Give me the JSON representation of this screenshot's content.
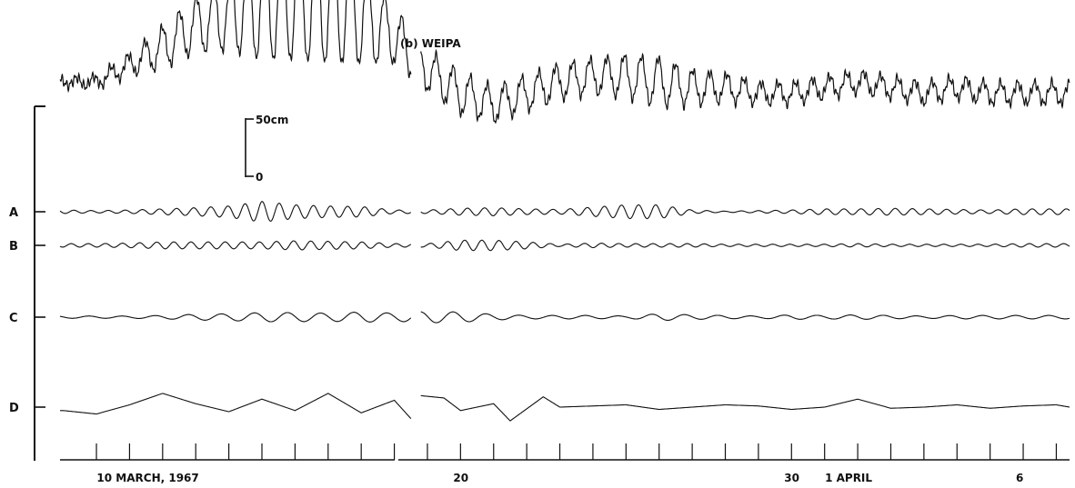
{
  "colors": {
    "ink": "#111111",
    "background": "#ffffff"
  },
  "figure": {
    "panel_title": "(b) WEIPA",
    "scale_bar": {
      "top_label": "50cm",
      "bottom_label": "0",
      "span_cm": 50
    }
  },
  "chart_data": {
    "type": "line",
    "title": "(b) WEIPA",
    "x_unit": "days (10 March 1967 = 10)",
    "x_range": [
      7.9,
      38.4
    ],
    "gap": [
      18.5,
      18.8
    ],
    "x_tick_labels": [
      {
        "day": 10,
        "text": "10 MARCH, 1967"
      },
      {
        "day": 20,
        "text": "20"
      },
      {
        "day": 30,
        "text": "30"
      },
      {
        "day": 32,
        "text": "1 APRIL"
      },
      {
        "day": 37,
        "text": "6"
      }
    ],
    "x_ticks_days": [
      9,
      10,
      11,
      12,
      13,
      14,
      15,
      16,
      17,
      18,
      19,
      20,
      21,
      22,
      23,
      24,
      25,
      26,
      27,
      28,
      29,
      30,
      31,
      32,
      33,
      34,
      35,
      36,
      37,
      38
    ],
    "series": [
      {
        "name": "",
        "kind": "observed",
        "amplitude_cm": [
          [
            8,
            5
          ],
          [
            9,
            8
          ],
          [
            10,
            15
          ],
          [
            11,
            30
          ],
          [
            12,
            40
          ],
          [
            13,
            55
          ],
          [
            14,
            85
          ],
          [
            15,
            85
          ],
          [
            16,
            90
          ],
          [
            17,
            75
          ],
          [
            18,
            40
          ],
          [
            19,
            30
          ],
          [
            20,
            30
          ],
          [
            21,
            25
          ],
          [
            22,
            25
          ],
          [
            23,
            25
          ],
          [
            24,
            25
          ],
          [
            25,
            30
          ],
          [
            26,
            35
          ],
          [
            27,
            25
          ],
          [
            28,
            20
          ],
          [
            29,
            15
          ],
          [
            30,
            15
          ],
          [
            31,
            15
          ],
          [
            32,
            15
          ],
          [
            33,
            15
          ],
          [
            34,
            15
          ],
          [
            35,
            15
          ],
          [
            36,
            15
          ],
          [
            37,
            15
          ],
          [
            38,
            15
          ]
        ],
        "level_cm": [
          [
            8,
            0
          ],
          [
            9,
            0
          ],
          [
            10,
            15
          ],
          [
            11,
            30
          ],
          [
            12,
            50
          ],
          [
            13,
            60
          ],
          [
            14,
            70
          ],
          [
            15,
            70
          ],
          [
            16,
            70
          ],
          [
            17,
            60
          ],
          [
            18,
            40
          ],
          [
            19,
            10
          ],
          [
            20,
            -10
          ],
          [
            21,
            -20
          ],
          [
            22,
            -10
          ],
          [
            23,
            0
          ],
          [
            24,
            5
          ],
          [
            25,
            5
          ],
          [
            26,
            0
          ],
          [
            27,
            -5
          ],
          [
            28,
            -5
          ],
          [
            29,
            -10
          ],
          [
            30,
            -10
          ],
          [
            31,
            -5
          ],
          [
            32,
            0
          ],
          [
            33,
            -5
          ],
          [
            34,
            -10
          ],
          [
            35,
            -5
          ],
          [
            36,
            -10
          ],
          [
            37,
            -10
          ],
          [
            38,
            -10
          ]
        ]
      },
      {
        "name": "A",
        "kind": "filtered",
        "amplitude_cm": [
          [
            8,
            3
          ],
          [
            9,
            2
          ],
          [
            10,
            3
          ],
          [
            11,
            5
          ],
          [
            12,
            7
          ],
          [
            13,
            10
          ],
          [
            14,
            18
          ],
          [
            15,
            12
          ],
          [
            16,
            10
          ],
          [
            17,
            9
          ],
          [
            18,
            3
          ],
          [
            19,
            3
          ],
          [
            20,
            6
          ],
          [
            21,
            7
          ],
          [
            22,
            5
          ],
          [
            23,
            4
          ],
          [
            24,
            8
          ],
          [
            25,
            12
          ],
          [
            26,
            12
          ],
          [
            27,
            3
          ],
          [
            28,
            1
          ],
          [
            29,
            2
          ],
          [
            30,
            3
          ],
          [
            31,
            5
          ],
          [
            32,
            5
          ],
          [
            33,
            6
          ],
          [
            34,
            5
          ],
          [
            35,
            4
          ],
          [
            36,
            3
          ],
          [
            37,
            5
          ],
          [
            38,
            5
          ]
        ]
      },
      {
        "name": "B",
        "kind": "filtered",
        "amplitude_cm": [
          [
            8,
            3
          ],
          [
            9,
            3
          ],
          [
            10,
            4
          ],
          [
            11,
            6
          ],
          [
            12,
            6
          ],
          [
            13,
            6
          ],
          [
            14,
            6
          ],
          [
            15,
            8
          ],
          [
            16,
            7
          ],
          [
            17,
            6
          ],
          [
            18,
            3
          ],
          [
            19,
            3
          ],
          [
            20,
            9
          ],
          [
            21,
            9
          ],
          [
            22,
            6
          ],
          [
            23,
            2
          ],
          [
            24,
            4
          ],
          [
            25,
            3
          ],
          [
            26,
            3
          ],
          [
            27,
            3
          ],
          [
            28,
            2
          ],
          [
            29,
            2
          ],
          [
            30,
            2
          ],
          [
            31,
            2
          ],
          [
            32,
            3
          ],
          [
            33,
            2
          ],
          [
            34,
            2
          ],
          [
            35,
            2
          ],
          [
            36,
            2
          ],
          [
            37,
            3
          ],
          [
            38,
            3
          ]
        ]
      },
      {
        "name": "C",
        "kind": "filtered",
        "amplitude_cm": [
          [
            8,
            2
          ],
          [
            9,
            2
          ],
          [
            10,
            2
          ],
          [
            11,
            3
          ],
          [
            12,
            5
          ],
          [
            13,
            6
          ],
          [
            14,
            8
          ],
          [
            15,
            8
          ],
          [
            16,
            7
          ],
          [
            17,
            9
          ],
          [
            18,
            7
          ],
          [
            19,
            10
          ],
          [
            20,
            9
          ],
          [
            21,
            5
          ],
          [
            22,
            3
          ],
          [
            23,
            3
          ],
          [
            24,
            3
          ],
          [
            25,
            2
          ],
          [
            26,
            6
          ],
          [
            27,
            4
          ],
          [
            28,
            3
          ],
          [
            29,
            2
          ],
          [
            30,
            4
          ],
          [
            31,
            3
          ],
          [
            32,
            4
          ],
          [
            33,
            3
          ],
          [
            34,
            2
          ],
          [
            35,
            3
          ],
          [
            36,
            3
          ],
          [
            37,
            3
          ],
          [
            38,
            3
          ]
        ]
      },
      {
        "name": "D",
        "kind": "filtered",
        "values_cm": [
          [
            8,
            -3
          ],
          [
            9,
            -6
          ],
          [
            10,
            2
          ],
          [
            11,
            12
          ],
          [
            12,
            3
          ],
          [
            13,
            -4
          ],
          [
            14,
            7
          ],
          [
            15,
            -3
          ],
          [
            16,
            12
          ],
          [
            17,
            -5
          ],
          [
            18,
            6
          ],
          [
            18.5,
            -10
          ],
          [
            18.8,
            10
          ],
          [
            19.5,
            8
          ],
          [
            20,
            -3
          ],
          [
            21,
            3
          ],
          [
            21.5,
            -12
          ],
          [
            22.5,
            9
          ],
          [
            23,
            0
          ],
          [
            24,
            1
          ],
          [
            25,
            2
          ],
          [
            26,
            -2
          ],
          [
            27,
            0
          ],
          [
            28,
            2
          ],
          [
            29,
            1
          ],
          [
            30,
            -2
          ],
          [
            31,
            0
          ],
          [
            32,
            7
          ],
          [
            33,
            -1
          ],
          [
            34,
            0
          ],
          [
            35,
            2
          ],
          [
            36,
            -1
          ],
          [
            37,
            1
          ],
          [
            38,
            2
          ],
          [
            38.4,
            0
          ]
        ]
      }
    ]
  }
}
